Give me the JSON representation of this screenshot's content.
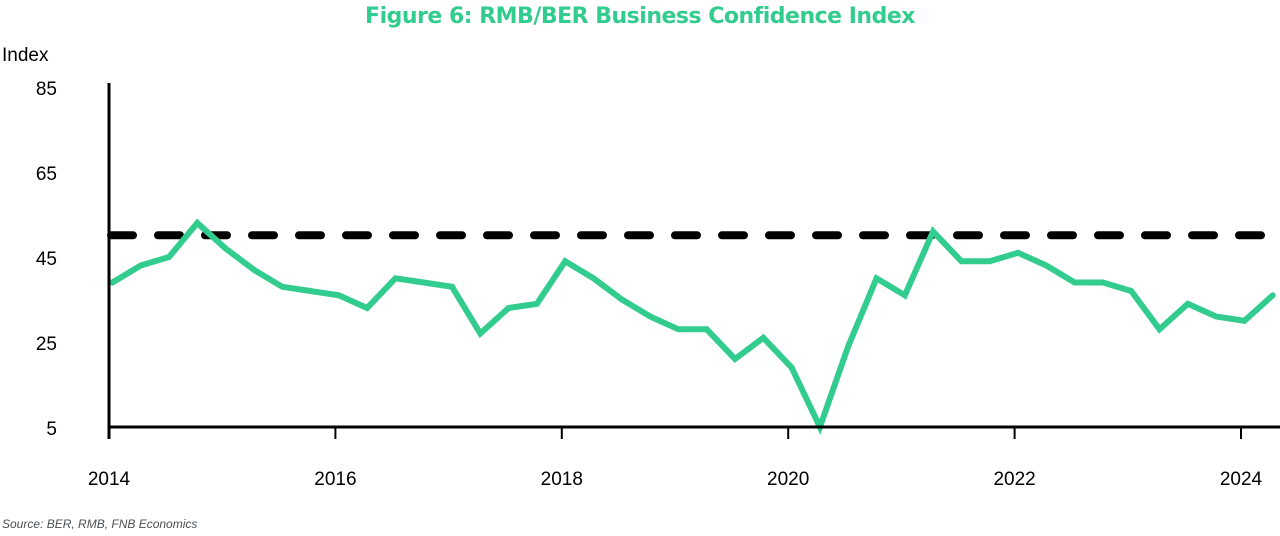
{
  "chart_data": {
    "type": "line",
    "title": "Figure 6: RMB/BER Business Confidence Index",
    "ylabel": "Index",
    "xlabel": "",
    "ylim": [
      5,
      85
    ],
    "yticks": [
      85,
      65,
      45,
      25,
      5
    ],
    "xlim": [
      2014,
      2024.5
    ],
    "xticks": [
      2014,
      2016,
      2018,
      2020,
      2022,
      2024
    ],
    "grid": false,
    "reference_line": {
      "value": 50,
      "style": "dashed",
      "color": "#000000"
    },
    "series": [
      {
        "name": "RMB/BER Business Confidence Index",
        "color": "#33cc8f",
        "frequency": "quarterly",
        "start": "2014Q1",
        "values": [
          39,
          43,
          45,
          53,
          47,
          42,
          38,
          37,
          36,
          33,
          40,
          39,
          38,
          27,
          33,
          34,
          44,
          40,
          35,
          31,
          28,
          28,
          21,
          26,
          19,
          5,
          24,
          40,
          36,
          51,
          44,
          44,
          46,
          43,
          39,
          39,
          37,
          28,
          34,
          31,
          30,
          36
        ]
      }
    ],
    "source": "Source: BER, RMB, FNB Economics"
  }
}
